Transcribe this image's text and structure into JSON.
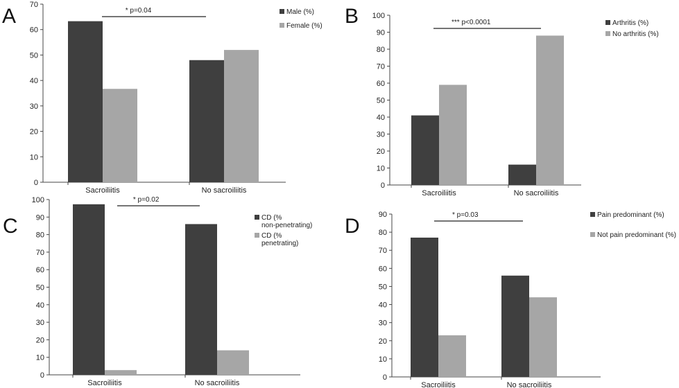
{
  "panels": [
    {
      "letter": "A"
    },
    {
      "letter": "B"
    },
    {
      "letter": "C"
    },
    {
      "letter": "D"
    }
  ],
  "chart_data": [
    {
      "type": "bar",
      "panel": "A",
      "categories": [
        "Sacroiliitis",
        "No sacroiliitis"
      ],
      "series": [
        {
          "name": "Male (%)",
          "values": [
            63.3,
            48
          ],
          "color": "#3f3f3f"
        },
        {
          "name": "Female (%)",
          "values": [
            36.7,
            52
          ],
          "color": "#a6a6a6"
        }
      ],
      "ylim": [
        0,
        70
      ],
      "yticks": [
        0,
        10,
        20,
        30,
        40,
        50,
        60,
        70
      ],
      "annotation": "* p=0.04",
      "legend": "top-right",
      "grid": false
    },
    {
      "type": "bar",
      "panel": "B",
      "categories": [
        "Sacroiliitis",
        "No sacroiliitis"
      ],
      "series": [
        {
          "name": "Arthritis (%)",
          "values": [
            41,
            12
          ],
          "color": "#3f3f3f"
        },
        {
          "name": "No arthritis (%)",
          "values": [
            59,
            88
          ],
          "color": "#a6a6a6"
        }
      ],
      "ylim": [
        0,
        100
      ],
      "yticks": [
        0,
        10,
        20,
        30,
        40,
        50,
        60,
        70,
        80,
        90,
        100
      ],
      "annotation": "*** p<0.0001",
      "legend": "top-right",
      "grid": false
    },
    {
      "type": "bar",
      "panel": "C",
      "categories": [
        "Sacroiliitis",
        "No sacroiliitis"
      ],
      "series": [
        {
          "name": "CD (% non-penetrating)",
          "values": [
            97.3,
            86
          ],
          "color": "#3f3f3f"
        },
        {
          "name": "CD (% penetrating)",
          "values": [
            2.7,
            14
          ],
          "color": "#a6a6a6"
        }
      ],
      "ylim": [
        0,
        100
      ],
      "yticks": [
        0,
        10,
        20,
        30,
        40,
        50,
        60,
        70,
        80,
        90,
        100
      ],
      "annotation": "* p=0.02",
      "legend": "top-right",
      "grid": false
    },
    {
      "type": "bar",
      "panel": "D",
      "categories": [
        "Sacroiliitis",
        "No sacroiliitis"
      ],
      "series": [
        {
          "name": "Pain predominant (%)",
          "values": [
            77,
            56
          ],
          "color": "#3f3f3f"
        },
        {
          "name": "Not pain predominant (%)",
          "values": [
            23,
            44
          ],
          "color": "#a6a6a6"
        }
      ],
      "ylim": [
        0,
        90
      ],
      "yticks": [
        0,
        10,
        20,
        30,
        40,
        50,
        60,
        70,
        80,
        90
      ],
      "annotation": "* p=0.03",
      "legend": "top-right",
      "grid": false
    }
  ]
}
